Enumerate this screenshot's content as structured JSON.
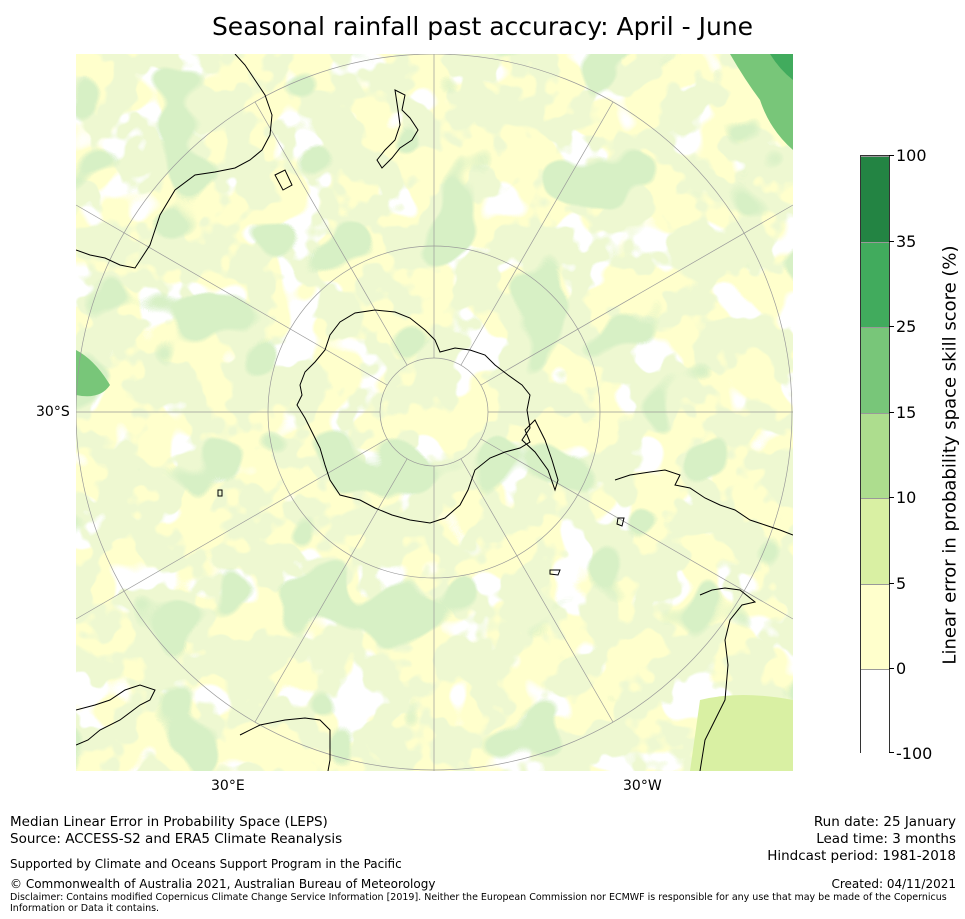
{
  "title": "Seasonal rainfall past accuracy: April - June",
  "map": {
    "lat_label": "30°S",
    "lon_labels": {
      "east": "30°E",
      "west": "30°W"
    },
    "projection": "south-polar-stereographic",
    "colors": {
      "land_outline": "#000000",
      "graticule": "#999999"
    }
  },
  "colorbar": {
    "title": "Linear error in probability space skill score (%)",
    "ticks": [
      "100",
      "35",
      "25",
      "15",
      "10",
      "5",
      "0",
      "-100"
    ],
    "bins": [
      {
        "range": "35 to 100",
        "color": "#238443"
      },
      {
        "range": "25 to 35",
        "color": "#41ab5d"
      },
      {
        "range": "15 to 25",
        "color": "#78c679"
      },
      {
        "range": "10 to 15",
        "color": "#addd8e"
      },
      {
        "range": "5 to 10",
        "color": "#d9f0a3"
      },
      {
        "range": "0 to 5",
        "color": "#ffffcc"
      },
      {
        "range": "-100 to 0",
        "color": "#ffffff"
      }
    ]
  },
  "footer": {
    "method": "Median Linear Error in Probability Space (LEPS)",
    "source": "Source: ACCESS-S2 and ERA5 Climate Reanalysis",
    "support": "Supported by Climate and Oceans Support Program in the Pacific",
    "copyright": "© Commonwealth of Australia 2021, Australian Bureau of Meteorology",
    "disclaimer": "Disclaimer: Contains modified Copernicus Climate Change Service Information [2019]. Neither the European Commission nor ECMWF is responsible for any use that may be made of the Copernicus Information or Data it contains.",
    "run_date": "Run date: 25 January",
    "lead_time": "Lead time: 3 months",
    "hindcast": "Hindcast period: 1981-2018",
    "created": "Created: 04/11/2021"
  }
}
